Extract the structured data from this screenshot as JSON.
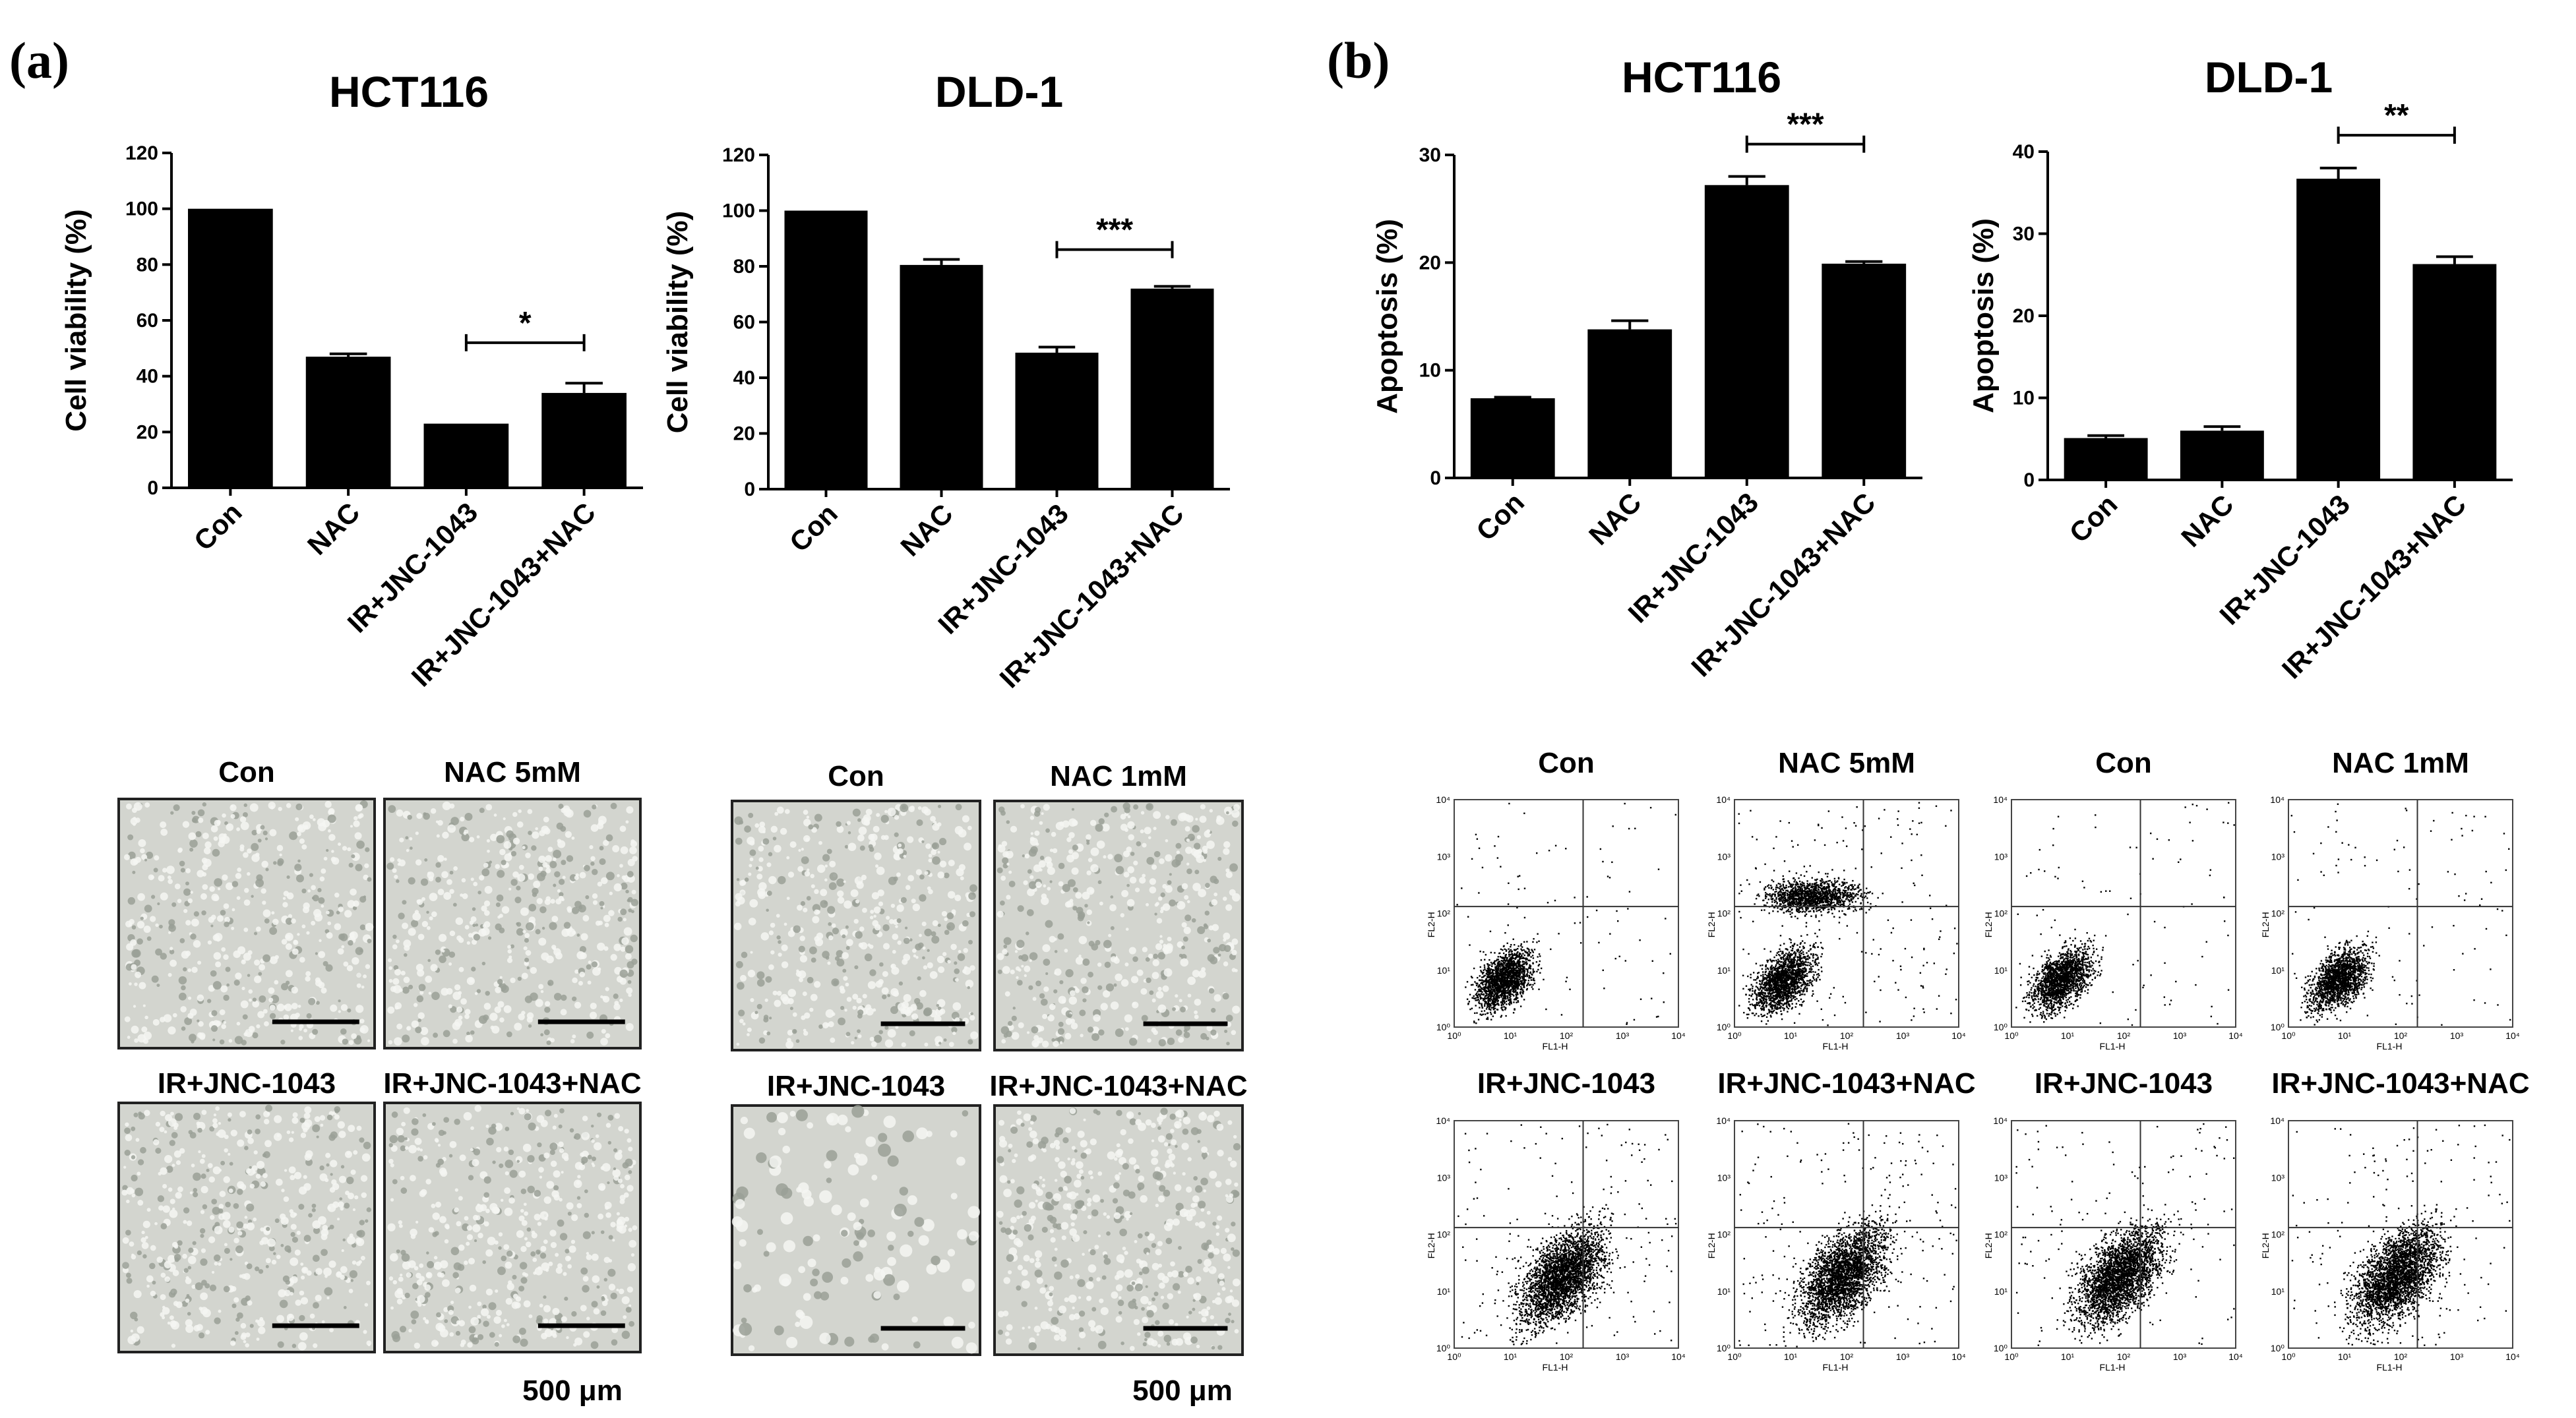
{
  "panels": [
    {
      "letter": "(a)"
    },
    {
      "letter": "(b)"
    }
  ],
  "chart_data": [
    {
      "type": "bar",
      "title": "HCT116",
      "ylabel": "Cell viability (%)",
      "categories": [
        "Con",
        "NAC",
        "IR+JNC-1043",
        "IR+JNC-1043+NAC"
      ],
      "values": [
        100,
        47,
        23,
        34
      ],
      "errors": [
        0,
        1,
        0,
        3.5
      ],
      "ylim": [
        0,
        120
      ],
      "yticks": [
        0,
        20,
        40,
        60,
        80,
        100,
        120
      ],
      "significance": {
        "from": 2,
        "to": 3,
        "label": "*",
        "y": 52
      }
    },
    {
      "type": "bar",
      "title": "DLD-1",
      "ylabel": "Cell viability (%)",
      "categories": [
        "Con",
        "NAC",
        "IR+JNC-1043",
        "IR+JNC-1043+NAC"
      ],
      "values": [
        100,
        80.5,
        49,
        72
      ],
      "errors": [
        0,
        2,
        2,
        0.8
      ],
      "ylim": [
        0,
        120
      ],
      "yticks": [
        0,
        20,
        40,
        60,
        80,
        100,
        120
      ],
      "significance": {
        "from": 2,
        "to": 3,
        "label": "***",
        "y": 86
      }
    },
    {
      "type": "bar",
      "title": "HCT116",
      "ylabel": "Apoptosis (%)",
      "categories": [
        "Con",
        "NAC",
        "IR+JNC-1043",
        "IR+JNC-1043+NAC"
      ],
      "values": [
        7.4,
        13.8,
        27.2,
        19.9
      ],
      "errors": [
        0.1,
        0.8,
        0.8,
        0.2
      ],
      "ylim": [
        0,
        30
      ],
      "yticks": [
        0,
        10,
        20,
        30
      ],
      "significance": {
        "from": 2,
        "to": 3,
        "label": "***",
        "y": 31
      }
    },
    {
      "type": "bar",
      "title": "DLD-1",
      "ylabel": "Apoptosis (%)",
      "categories": [
        "Con",
        "NAC",
        "IR+JNC-1043",
        "IR+JNC-1043+NAC"
      ],
      "values": [
        5.1,
        6.0,
        36.7,
        26.3
      ],
      "errors": [
        0.3,
        0.5,
        1.3,
        0.9
      ],
      "ylim": [
        0,
        40
      ],
      "yticks": [
        0,
        10,
        20,
        30,
        40
      ],
      "significance": {
        "from": 2,
        "to": 3,
        "label": "**",
        "y": 42
      }
    }
  ],
  "micrographs": {
    "hct116": [
      "Con",
      "NAC 5mM",
      "IR+JNC-1043",
      "IR+JNC-1043+NAC"
    ],
    "dld1": [
      "Con",
      "NAC 1mM",
      "IR+JNC-1043",
      "IR+JNC-1043+NAC"
    ],
    "scale_label": "500 μm"
  },
  "flow": {
    "hct116": [
      "Con",
      "NAC 5mM",
      "IR+JNC-1043",
      "IR+JNC-1043+NAC"
    ],
    "dld1": [
      "Con",
      "NAC 1mM",
      "IR+JNC-1043",
      "IR+JNC-1043+NAC"
    ],
    "xlabel": "FL1-H",
    "ylabel": "FL2-H",
    "decades": [
      "10⁰",
      "10¹",
      "10²",
      "10³",
      "10⁴"
    ]
  },
  "colors": {
    "bar": "#000000",
    "micrograph_bg": "#d3d5cf",
    "cell": "#f4f6f2",
    "dot": "#000000"
  }
}
